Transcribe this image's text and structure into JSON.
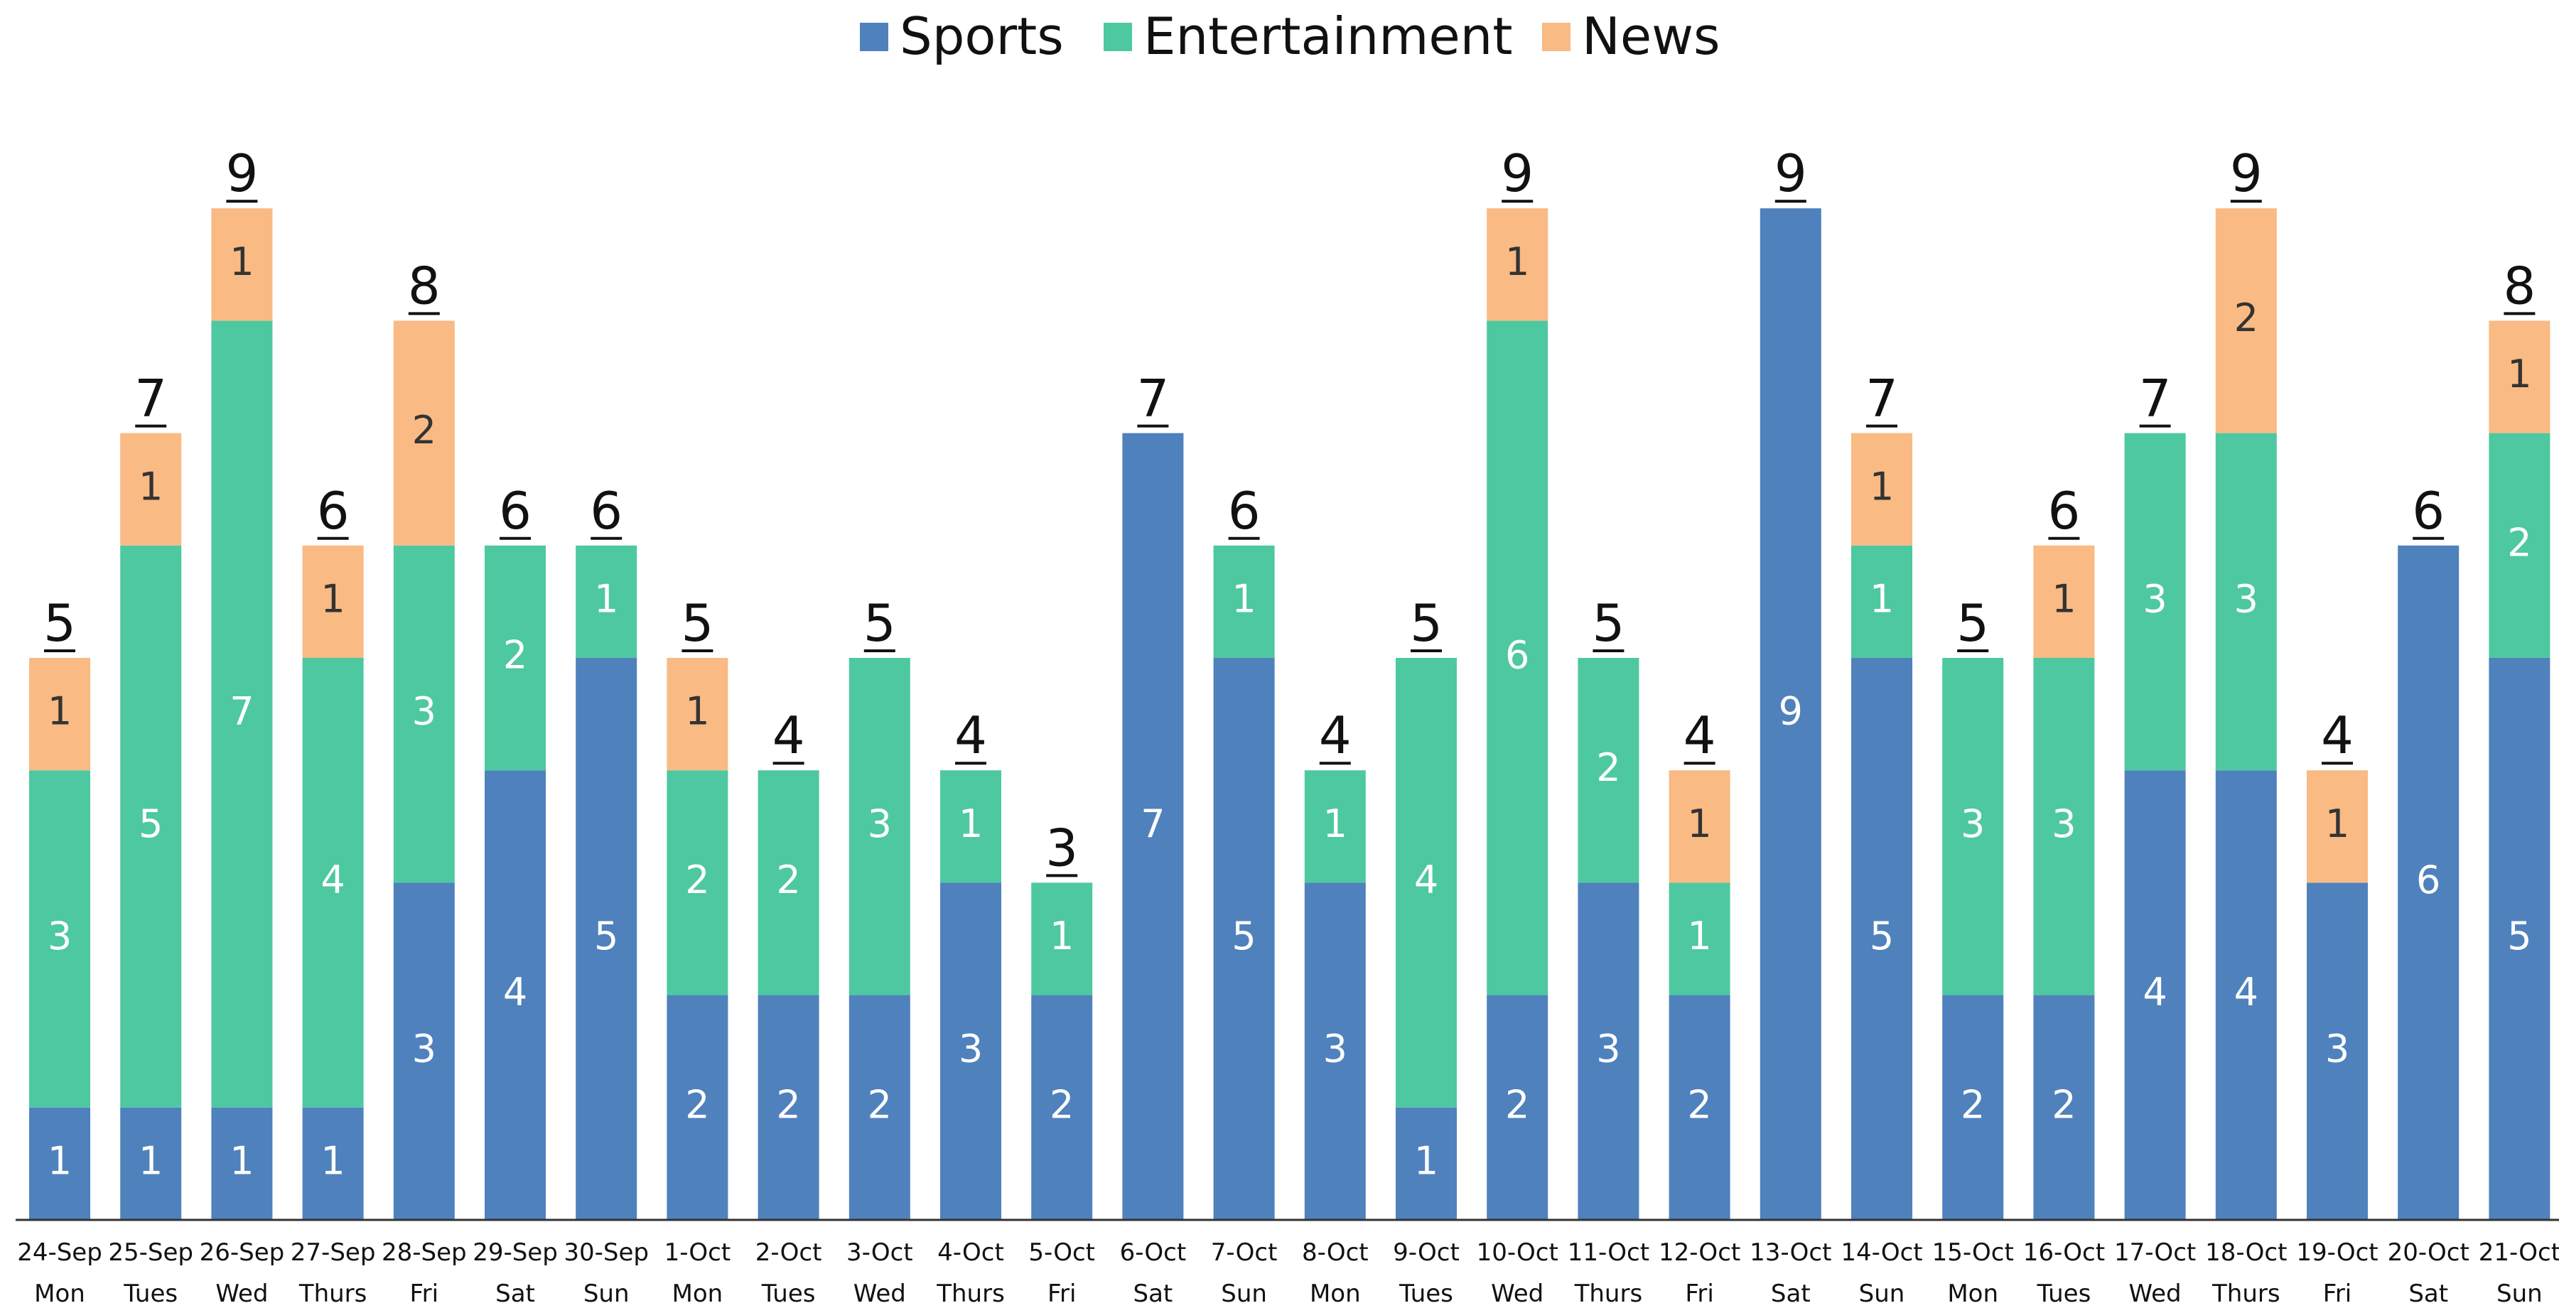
{
  "chart_data": {
    "type": "bar",
    "stacked": true,
    "title": "",
    "xlabel": "",
    "ylabel": "",
    "ylim": [
      0,
      9
    ],
    "grid": false,
    "legend_position": "top",
    "categories": [
      "24-Sep",
      "25-Sep",
      "26-Sep",
      "27-Sep",
      "28-Sep",
      "29-Sep",
      "30-Sep",
      "1-Oct",
      "2-Oct",
      "3-Oct",
      "4-Oct",
      "5-Oct",
      "6-Oct",
      "7-Oct",
      "8-Oct",
      "9-Oct",
      "10-Oct",
      "11-Oct",
      "12-Oct",
      "13-Oct",
      "14-Oct",
      "15-Oct",
      "16-Oct",
      "17-Oct",
      "18-Oct",
      "19-Oct",
      "20-Oct",
      "21-Oct"
    ],
    "weekdays": [
      "Mon",
      "Tues",
      "Wed",
      "Thurs",
      "Fri",
      "Sat",
      "Sun",
      "Mon",
      "Tues",
      "Wed",
      "Thurs",
      "Fri",
      "Sat",
      "Sun",
      "Mon",
      "Tues",
      "Wed",
      "Thurs",
      "Fri",
      "Sat",
      "Sun",
      "Mon",
      "Tues",
      "Wed",
      "Thurs",
      "Fri",
      "Sat",
      "Sun"
    ],
    "series": [
      {
        "name": "Sports",
        "color": "#4F81BD",
        "label_color": "#ffffff",
        "values": [
          1,
          1,
          1,
          1,
          3,
          4,
          5,
          2,
          2,
          2,
          3,
          2,
          7,
          5,
          3,
          1,
          2,
          3,
          2,
          9,
          5,
          2,
          2,
          4,
          4,
          3,
          6,
          5
        ]
      },
      {
        "name": "Entertainment",
        "color": "#4EC8A0",
        "label_color": "#ffffff",
        "values": [
          3,
          5,
          7,
          4,
          3,
          2,
          1,
          2,
          2,
          3,
          1,
          1,
          0,
          1,
          1,
          4,
          6,
          2,
          1,
          0,
          1,
          3,
          3,
          3,
          3,
          0,
          0,
          2
        ]
      },
      {
        "name": "News",
        "color": "#F9BA84",
        "label_color": "#333333",
        "values": [
          1,
          1,
          1,
          1,
          2,
          0,
          0,
          1,
          0,
          0,
          0,
          0,
          0,
          0,
          0,
          0,
          1,
          0,
          1,
          0,
          1,
          0,
          1,
          0,
          2,
          1,
          0,
          1
        ]
      }
    ],
    "totals": [
      5,
      7,
      9,
      6,
      8,
      6,
      6,
      5,
      4,
      5,
      4,
      3,
      7,
      6,
      4,
      5,
      9,
      5,
      4,
      9,
      7,
      5,
      6,
      7,
      9,
      4,
      6,
      8
    ]
  }
}
